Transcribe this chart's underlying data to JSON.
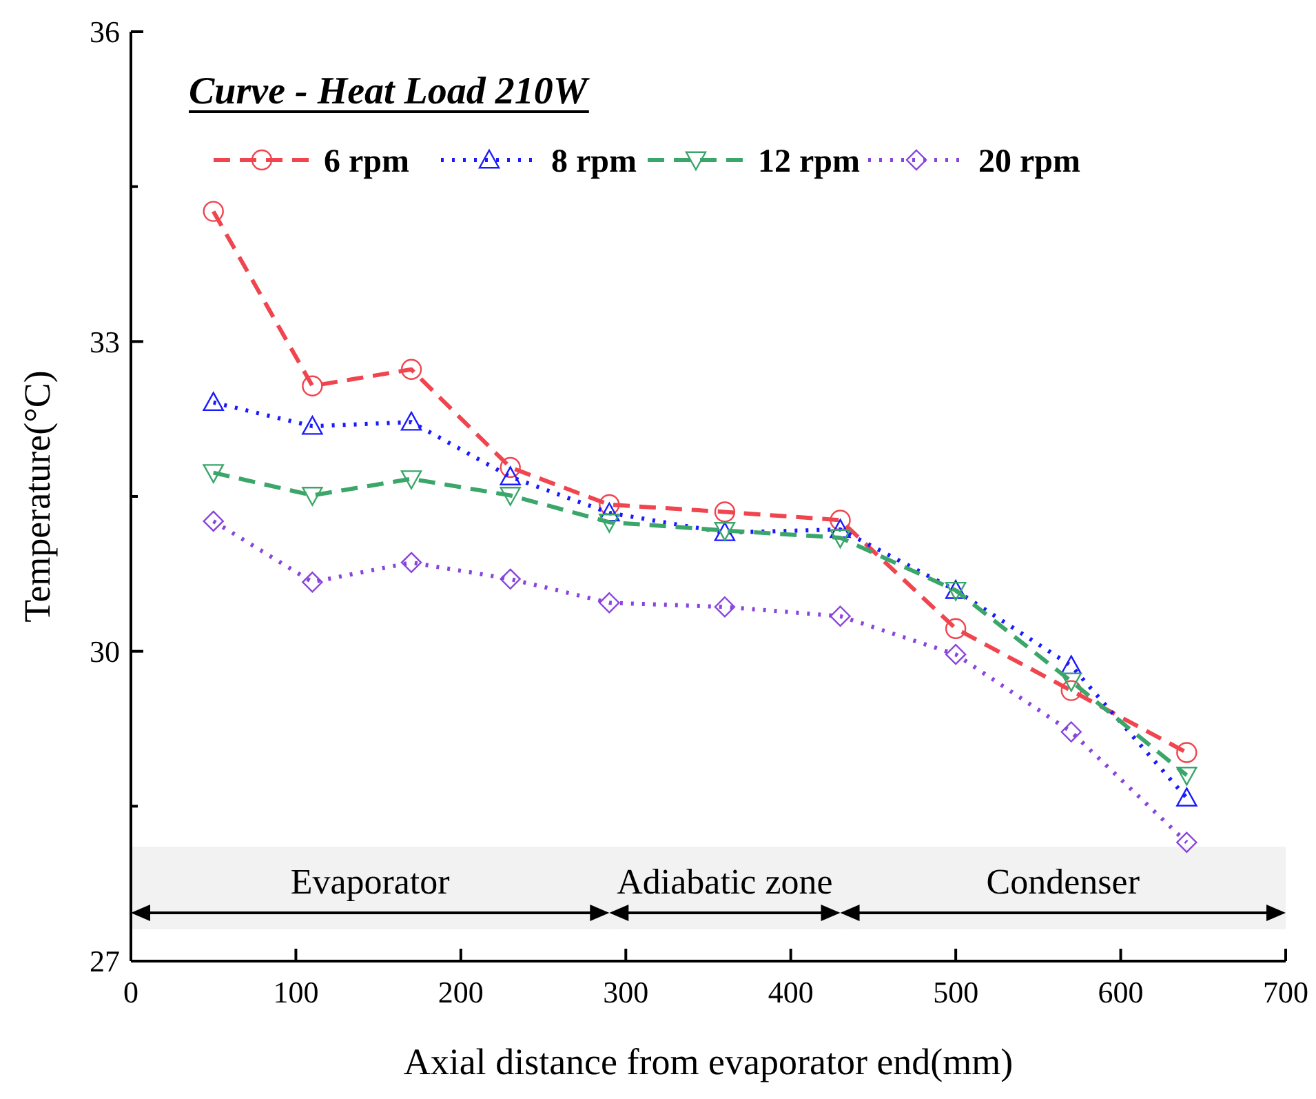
{
  "chart_data": {
    "type": "line",
    "title": "Curve - Heat Load 210W",
    "xlabel": "Axial distance from evaporator end(mm)",
    "ylabel": "Temperature(°C)",
    "x": [
      50,
      110,
      170,
      230,
      290,
      360,
      430,
      500,
      570,
      640
    ],
    "series": [
      {
        "name": "6 rpm",
        "color": "#f0454f",
        "marker": "circle",
        "line_style": "dashed",
        "values": [
          34.26,
          32.57,
          32.73,
          31.78,
          31.42,
          31.35,
          31.27,
          30.22,
          29.62,
          29.02
        ]
      },
      {
        "name": "8 rpm",
        "color": "#1a1aff",
        "marker": "triangle",
        "line_style": "dotted",
        "values": [
          32.41,
          32.18,
          32.22,
          31.69,
          31.34,
          31.15,
          31.18,
          30.59,
          29.86,
          28.58
        ]
      },
      {
        "name": "12 rpm",
        "color": "#3aa66a",
        "marker": "triangle-down",
        "line_style": "dashed",
        "values": [
          31.73,
          31.51,
          31.67,
          31.51,
          31.25,
          31.17,
          31.1,
          30.59,
          29.71,
          28.8
        ]
      },
      {
        "name": "20 rpm",
        "color": "#8844dd",
        "marker": "diamond",
        "line_style": "dotted",
        "values": [
          31.26,
          30.67,
          30.86,
          30.7,
          30.47,
          30.43,
          30.34,
          29.97,
          29.22,
          28.15
        ]
      }
    ],
    "xlim": [
      0,
      700
    ],
    "xticks": [
      0,
      100,
      200,
      300,
      400,
      500,
      600,
      700
    ],
    "ylim": [
      27,
      36
    ],
    "yticks": [
      27,
      {
        "value": 28.5,
        "label": null
      },
      30,
      {
        "value": 31.5,
        "label": null
      },
      33,
      {
        "value": 34.5,
        "label": null
      },
      36
    ],
    "bands": [
      {
        "axis": "x",
        "from": 0,
        "to": 290,
        "label": "Evaporator",
        "color": "#000000"
      },
      {
        "axis": "x",
        "from": 290,
        "to": 430,
        "label": "Adiabatic zone",
        "color": "#000000"
      },
      {
        "axis": "x",
        "from": 430,
        "to": 700,
        "label": "Condenser",
        "color": "#000000"
      }
    ],
    "legend": "top",
    "grid": false
  }
}
